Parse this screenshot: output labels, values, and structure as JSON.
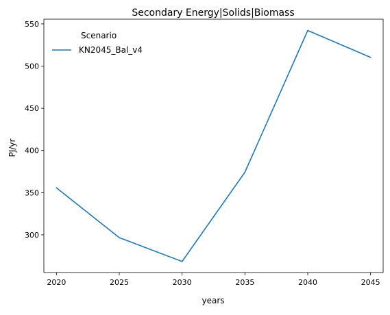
{
  "chart_data": {
    "type": "line",
    "title": "Secondary Energy|Solids|Biomass",
    "xlabel": "years",
    "ylabel": "PJ/yr",
    "x": [
      2020,
      2025,
      2030,
      2035,
      2040,
      2045
    ],
    "xticks": [
      "2020",
      "2025",
      "2030",
      "2035",
      "2040",
      "2045"
    ],
    "yticks": [
      "300",
      "350",
      "400",
      "450",
      "500",
      "550"
    ],
    "xlim": [
      2019,
      2046
    ],
    "ylim": [
      255.3,
      555.6
    ],
    "grid": false,
    "legend": {
      "title": "Scenario",
      "position": "upper-left"
    },
    "series": [
      {
        "name": "KN2045_Bal_v4",
        "color": "#1f77b4",
        "values": [
          355.7,
          296.7,
          268.4,
          374.2,
          542.2,
          510.3
        ]
      }
    ]
  }
}
